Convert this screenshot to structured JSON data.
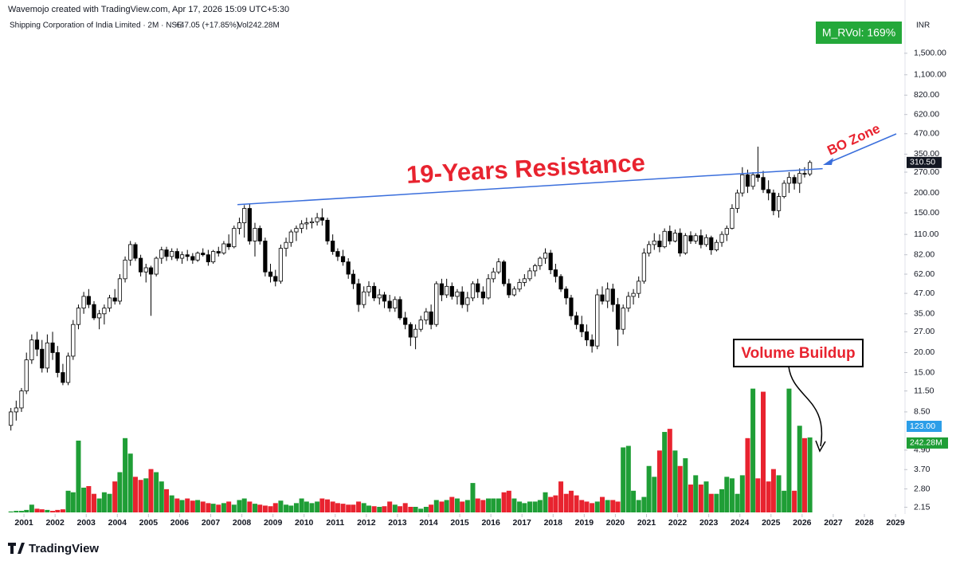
{
  "header": {
    "attribution": "Wavemojo created with TradingView.com, Apr 17, 2026 15:09 UTC+5:30",
    "symbol": "Shipping Corporation of India Limited · 2M · NSE",
    "change": "+47.05 (+17.85%)",
    "volume": "Vol242.28M",
    "currency": "INR",
    "rvol_badge": "M_RVol: 169%",
    "footer_logo": "TradingView"
  },
  "chart_data": {
    "type": "candlestick",
    "log_scale": true,
    "up_color": "#ffffff",
    "down_color": "#000000",
    "border_color": "#000000",
    "volume_up_color": "#1f9e36",
    "volume_down_color": "#e8232f",
    "line_color": "#3b6fdc",
    "xlim": [
      2000.23,
      2029.28
    ],
    "ylim": [
      1.95,
      1950
    ],
    "y2lim": [
      0,
      600
    ],
    "xticks": [
      2001,
      2002,
      2003,
      2004,
      2005,
      2006,
      2007,
      2008,
      2009,
      2010,
      2011,
      2012,
      2013,
      2014,
      2015,
      2016,
      2017,
      2018,
      2019,
      2020,
      2021,
      2022,
      2023,
      2024,
      2025,
      2026,
      2027,
      2028,
      2029
    ],
    "yticks": [
      {
        "value": 2.15,
        "label": "2.15"
      },
      {
        "value": 2.8,
        "label": "2.80"
      },
      {
        "value": 3.7,
        "label": "3.70"
      },
      {
        "value": 4.9,
        "label": "4.90"
      },
      {
        "value": 8.5,
        "label": "8.50"
      },
      {
        "value": 11.5,
        "label": "11.50"
      },
      {
        "value": 15,
        "label": "15.00"
      },
      {
        "value": 20,
        "label": "20.00"
      },
      {
        "value": 27,
        "label": "27.00"
      },
      {
        "value": 35,
        "label": "35.00"
      },
      {
        "value": 47,
        "label": "47.00"
      },
      {
        "value": 62,
        "label": "62.00"
      },
      {
        "value": 82,
        "label": "82.00"
      },
      {
        "value": 110,
        "label": "110.00"
      },
      {
        "value": 150,
        "label": "150.00"
      },
      {
        "value": 200,
        "label": "200.00"
      },
      {
        "value": 270,
        "label": "270.00"
      },
      {
        "value": 350,
        "label": "350.00"
      },
      {
        "value": 470,
        "label": "470.00"
      },
      {
        "value": 620,
        "label": "620.00"
      },
      {
        "value": 820,
        "label": "820.00"
      },
      {
        "value": 1100,
        "label": "1,100.00"
      },
      {
        "value": 1500,
        "label": "1,500.00"
      }
    ],
    "x": [
      2000.58,
      2000.75,
      2000.92,
      2001.08,
      2001.25,
      2001.42,
      2001.58,
      2001.75,
      2001.92,
      2002.08,
      2002.25,
      2002.42,
      2002.58,
      2002.75,
      2002.92,
      2003.08,
      2003.25,
      2003.42,
      2003.58,
      2003.75,
      2003.92,
      2004.08,
      2004.25,
      2004.42,
      2004.58,
      2004.75,
      2004.92,
      2005.08,
      2005.25,
      2005.42,
      2005.58,
      2005.75,
      2005.92,
      2006.08,
      2006.25,
      2006.42,
      2006.58,
      2006.75,
      2006.92,
      2007.08,
      2007.25,
      2007.42,
      2007.58,
      2007.75,
      2007.92,
      2008.08,
      2008.25,
      2008.42,
      2008.58,
      2008.75,
      2008.92,
      2009.08,
      2009.25,
      2009.42,
      2009.58,
      2009.75,
      2009.92,
      2010.08,
      2010.25,
      2010.42,
      2010.58,
      2010.75,
      2010.92,
      2011.08,
      2011.25,
      2011.42,
      2011.58,
      2011.75,
      2011.92,
      2012.08,
      2012.25,
      2012.42,
      2012.58,
      2012.75,
      2012.92,
      2013.08,
      2013.25,
      2013.42,
      2013.58,
      2013.75,
      2013.92,
      2014.08,
      2014.25,
      2014.42,
      2014.58,
      2014.75,
      2014.92,
      2015.08,
      2015.25,
      2015.42,
      2015.58,
      2015.75,
      2015.92,
      2016.08,
      2016.25,
      2016.42,
      2016.58,
      2016.75,
      2016.92,
      2017.08,
      2017.25,
      2017.42,
      2017.58,
      2017.75,
      2017.92,
      2018.08,
      2018.25,
      2018.42,
      2018.58,
      2018.75,
      2018.92,
      2019.08,
      2019.25,
      2019.42,
      2019.58,
      2019.75,
      2019.92,
      2020.08,
      2020.25,
      2020.42,
      2020.58,
      2020.75,
      2020.92,
      2021.08,
      2021.25,
      2021.42,
      2021.58,
      2021.75,
      2021.92,
      2022.08,
      2022.25,
      2022.42,
      2022.58,
      2022.75,
      2022.92,
      2023.08,
      2023.25,
      2023.42,
      2023.58,
      2023.75,
      2023.92,
      2024.08,
      2024.25,
      2024.42,
      2024.58,
      2024.75,
      2024.92,
      2025.08,
      2025.25,
      2025.42,
      2025.58,
      2025.75,
      2025.92,
      2026.08,
      2026.25
    ],
    "ohlc": [
      [
        7,
        9,
        6.5,
        8.5
      ],
      [
        8.5,
        10,
        7.5,
        9
      ],
      [
        9,
        12,
        8.5,
        11.5
      ],
      [
        11.5,
        20,
        11,
        18
      ],
      [
        18,
        26,
        17,
        24
      ],
      [
        24,
        27,
        19,
        21
      ],
      [
        21,
        24,
        15,
        16
      ],
      [
        16,
        26,
        15,
        23
      ],
      [
        23,
        27,
        18,
        20
      ],
      [
        20,
        22,
        14,
        15
      ],
      [
        15,
        17,
        12.5,
        13
      ],
      [
        13,
        20,
        12.5,
        19
      ],
      [
        19,
        32,
        18,
        30
      ],
      [
        30,
        40,
        28,
        38
      ],
      [
        38,
        48,
        35,
        45
      ],
      [
        45,
        50,
        38,
        40
      ],
      [
        40,
        42,
        32,
        33
      ],
      [
        33,
        37,
        28,
        35
      ],
      [
        35,
        40,
        30,
        38
      ],
      [
        38,
        46,
        36,
        44
      ],
      [
        44,
        50,
        40,
        42
      ],
      [
        42,
        62,
        40,
        58
      ],
      [
        58,
        80,
        55,
        76
      ],
      [
        76,
        100,
        70,
        95
      ],
      [
        95,
        98,
        75,
        78
      ],
      [
        78,
        82,
        60,
        64
      ],
      [
        64,
        72,
        55,
        68
      ],
      [
        68,
        70,
        34,
        62
      ],
      [
        62,
        80,
        60,
        78
      ],
      [
        78,
        92,
        72,
        88
      ],
      [
        88,
        92,
        75,
        80
      ],
      [
        80,
        90,
        76,
        86
      ],
      [
        86,
        90,
        75,
        78
      ],
      [
        78,
        86,
        72,
        82
      ],
      [
        82,
        88,
        75,
        80
      ],
      [
        80,
        84,
        72,
        76
      ],
      [
        76,
        86,
        74,
        84
      ],
      [
        84,
        90,
        80,
        82
      ],
      [
        82,
        88,
        70,
        74
      ],
      [
        74,
        88,
        72,
        86
      ],
      [
        86,
        92,
        80,
        84
      ],
      [
        84,
        100,
        82,
        96
      ],
      [
        96,
        110,
        88,
        92
      ],
      [
        92,
        125,
        90,
        120
      ],
      [
        120,
        140,
        110,
        130
      ],
      [
        130,
        168,
        105,
        160
      ],
      [
        160,
        170,
        95,
        100
      ],
      [
        100,
        130,
        80,
        120
      ],
      [
        120,
        125,
        95,
        100
      ],
      [
        100,
        105,
        60,
        64
      ],
      [
        64,
        72,
        55,
        60
      ],
      [
        60,
        66,
        52,
        56
      ],
      [
        56,
        95,
        54,
        90
      ],
      [
        90,
        105,
        80,
        98
      ],
      [
        98,
        118,
        92,
        114
      ],
      [
        114,
        125,
        100,
        120
      ],
      [
        120,
        135,
        112,
        128
      ],
      [
        128,
        140,
        118,
        130
      ],
      [
        130,
        140,
        120,
        132
      ],
      [
        132,
        150,
        125,
        140
      ],
      [
        140,
        160,
        125,
        135
      ],
      [
        135,
        140,
        95,
        100
      ],
      [
        100,
        110,
        82,
        86
      ],
      [
        86,
        90,
        75,
        80
      ],
      [
        80,
        88,
        70,
        74
      ],
      [
        74,
        78,
        58,
        62
      ],
      [
        62,
        66,
        50,
        54
      ],
      [
        54,
        58,
        36,
        40
      ],
      [
        40,
        52,
        38,
        48
      ],
      [
        48,
        56,
        45,
        52
      ],
      [
        52,
        55,
        42,
        44
      ],
      [
        44,
        50,
        40,
        46
      ],
      [
        46,
        48,
        38,
        42
      ],
      [
        42,
        46,
        36,
        38
      ],
      [
        38,
        45,
        36,
        43
      ],
      [
        43,
        45,
        32,
        33
      ],
      [
        33,
        36,
        28,
        30
      ],
      [
        30,
        31,
        22,
        25
      ],
      [
        25,
        30,
        21,
        28
      ],
      [
        28,
        34,
        27,
        32
      ],
      [
        32,
        38,
        30,
        36
      ],
      [
        36,
        40,
        28,
        30
      ],
      [
        30,
        56,
        29,
        54
      ],
      [
        54,
        58,
        42,
        46
      ],
      [
        46,
        58,
        44,
        52
      ],
      [
        52,
        55,
        43,
        45
      ],
      [
        45,
        50,
        40,
        48
      ],
      [
        48,
        52,
        38,
        40
      ],
      [
        40,
        48,
        36,
        44
      ],
      [
        44,
        56,
        42,
        54
      ],
      [
        54,
        58,
        44,
        48
      ],
      [
        48,
        52,
        40,
        44
      ],
      [
        44,
        62,
        43,
        58
      ],
      [
        58,
        68,
        55,
        64
      ],
      [
        64,
        78,
        62,
        74
      ],
      [
        74,
        76,
        52,
        54
      ],
      [
        54,
        58,
        44,
        46
      ],
      [
        46,
        52,
        45,
        50
      ],
      [
        50,
        58,
        48,
        55
      ],
      [
        55,
        62,
        52,
        58
      ],
      [
        58,
        68,
        56,
        65
      ],
      [
        65,
        72,
        60,
        70
      ],
      [
        70,
        80,
        66,
        78
      ],
      [
        78,
        90,
        72,
        84
      ],
      [
        84,
        88,
        62,
        66
      ],
      [
        66,
        72,
        55,
        60
      ],
      [
        60,
        62,
        48,
        50
      ],
      [
        50,
        52,
        40,
        44
      ],
      [
        44,
        46,
        32,
        34
      ],
      [
        34,
        36,
        28,
        30
      ],
      [
        30,
        34,
        25,
        27
      ],
      [
        27,
        30,
        22,
        24
      ],
      [
        24,
        26,
        20,
        22
      ],
      [
        22,
        50,
        21,
        46
      ],
      [
        46,
        52,
        40,
        42
      ],
      [
        42,
        55,
        38,
        50
      ],
      [
        50,
        54,
        36,
        40
      ],
      [
        40,
        44,
        22,
        28
      ],
      [
        28,
        40,
        26,
        38
      ],
      [
        38,
        48,
        36,
        45
      ],
      [
        45,
        50,
        40,
        47
      ],
      [
        47,
        60,
        44,
        56
      ],
      [
        56,
        90,
        54,
        84
      ],
      [
        84,
        100,
        80,
        95
      ],
      [
        95,
        112,
        88,
        100
      ],
      [
        100,
        110,
        85,
        92
      ],
      [
        92,
        120,
        90,
        115
      ],
      [
        115,
        125,
        95,
        100
      ],
      [
        100,
        118,
        98,
        112
      ],
      [
        112,
        120,
        80,
        84
      ],
      [
        84,
        112,
        82,
        108
      ],
      [
        108,
        115,
        96,
        100
      ],
      [
        100,
        112,
        96,
        108
      ],
      [
        108,
        118,
        90,
        95
      ],
      [
        95,
        110,
        92,
        105
      ],
      [
        105,
        108,
        82,
        88
      ],
      [
        88,
        102,
        86,
        98
      ],
      [
        98,
        115,
        92,
        110
      ],
      [
        110,
        125,
        100,
        120
      ],
      [
        120,
        170,
        118,
        160
      ],
      [
        160,
        210,
        150,
        200
      ],
      [
        200,
        290,
        190,
        260
      ],
      [
        260,
        280,
        200,
        220
      ],
      [
        220,
        270,
        210,
        260
      ],
      [
        260,
        390,
        235,
        250
      ],
      [
        250,
        275,
        200,
        210
      ],
      [
        210,
        240,
        180,
        200
      ],
      [
        200,
        210,
        145,
        155
      ],
      [
        155,
        200,
        140,
        190
      ],
      [
        190,
        240,
        185,
        230
      ],
      [
        230,
        270,
        200,
        250
      ],
      [
        250,
        260,
        210,
        230
      ],
      [
        230,
        285,
        200,
        265
      ],
      [
        265,
        290,
        250,
        263
      ],
      [
        263,
        320,
        255,
        310.5
      ]
    ],
    "volume": [
      3,
      5,
      5,
      8,
      25,
      12,
      10,
      8,
      5,
      8,
      10,
      70,
      65,
      232,
      80,
      85,
      60,
      45,
      65,
      60,
      100,
      130,
      240,
      190,
      115,
      105,
      110,
      140,
      130,
      100,
      75,
      55,
      45,
      40,
      45,
      38,
      40,
      35,
      30,
      28,
      25,
      30,
      35,
      25,
      40,
      45,
      35,
      28,
      25,
      22,
      20,
      30,
      38,
      25,
      22,
      30,
      45,
      35,
      30,
      35,
      45,
      42,
      35,
      30,
      28,
      25,
      25,
      35,
      30,
      22,
      20,
      18,
      20,
      35,
      25,
      20,
      30,
      18,
      18,
      12,
      18,
      25,
      40,
      35,
      40,
      50,
      45,
      35,
      40,
      95,
      45,
      40,
      45,
      45,
      45,
      65,
      70,
      45,
      35,
      30,
      35,
      35,
      40,
      65,
      50,
      55,
      100,
      60,
      70,
      55,
      40,
      35,
      30,
      35,
      50,
      40,
      40,
      35,
      210,
      215,
      70,
      40,
      50,
      150,
      115,
      200,
      260,
      270,
      200,
      150,
      175,
      90,
      120,
      90,
      100,
      60,
      60,
      75,
      115,
      110,
      60,
      120,
      240,
      400,
      110,
      390,
      100,
      140,
      120,
      70,
      400,
      70,
      280,
      240,
      242.28
    ],
    "last_close_label": "310.50",
    "last_volume_label": "242.28M",
    "volume_ma_label": "123.00",
    "resistance_line": {
      "x": [
        2007.86,
        2026.66
      ],
      "y": [
        169,
        284
      ]
    },
    "annotations": [
      {
        "text": "19-Years Resistance"
      },
      {
        "text": "BO Zone"
      },
      {
        "text": "Volume Buildup"
      }
    ]
  }
}
